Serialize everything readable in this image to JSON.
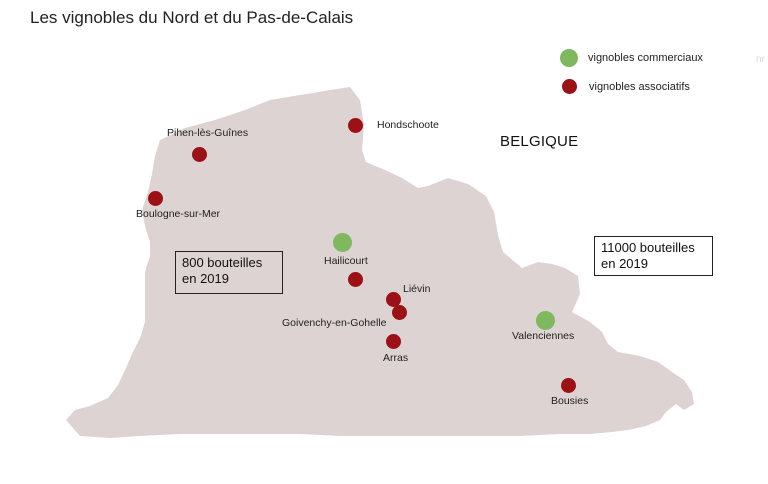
{
  "title": "Les vignobles du Nord et du Pas-de-Calais",
  "legend": {
    "commercial": {
      "label": "vignobles commerciaux",
      "color": "#7fb85e"
    },
    "associative": {
      "label": "vignobles associatifs",
      "color": "#9b1116"
    }
  },
  "map_color": "#ddd3d3",
  "country": "BELGIQUE",
  "watermark": "nr",
  "info_boxes": {
    "west": {
      "line1": "800 bouteilles",
      "line2": "en 2019"
    },
    "east": {
      "line1": "11000 bouteilles",
      "line2": "en 2019"
    }
  },
  "cities": {
    "hondschoote": {
      "name": "Hondschoote",
      "type": "associative"
    },
    "pihen": {
      "name": "Pihen-lès-Guînes",
      "type": "associative"
    },
    "boulogne": {
      "name": "Boulogne-sur-Mer",
      "type": "associative"
    },
    "hailicourt": {
      "name": "Hailicourt",
      "type": "commercial"
    },
    "lievin": {
      "name": "Liévin",
      "type": "associative"
    },
    "goivenchy": {
      "name": "Goivenchy-en-Gohelle",
      "type": "associative"
    },
    "arras": {
      "name": "Arras",
      "type": "associative"
    },
    "valenciennes": {
      "name": "Valenciennes",
      "type": "commercial"
    },
    "bousies": {
      "name": "Bousies",
      "type": "associative"
    }
  }
}
